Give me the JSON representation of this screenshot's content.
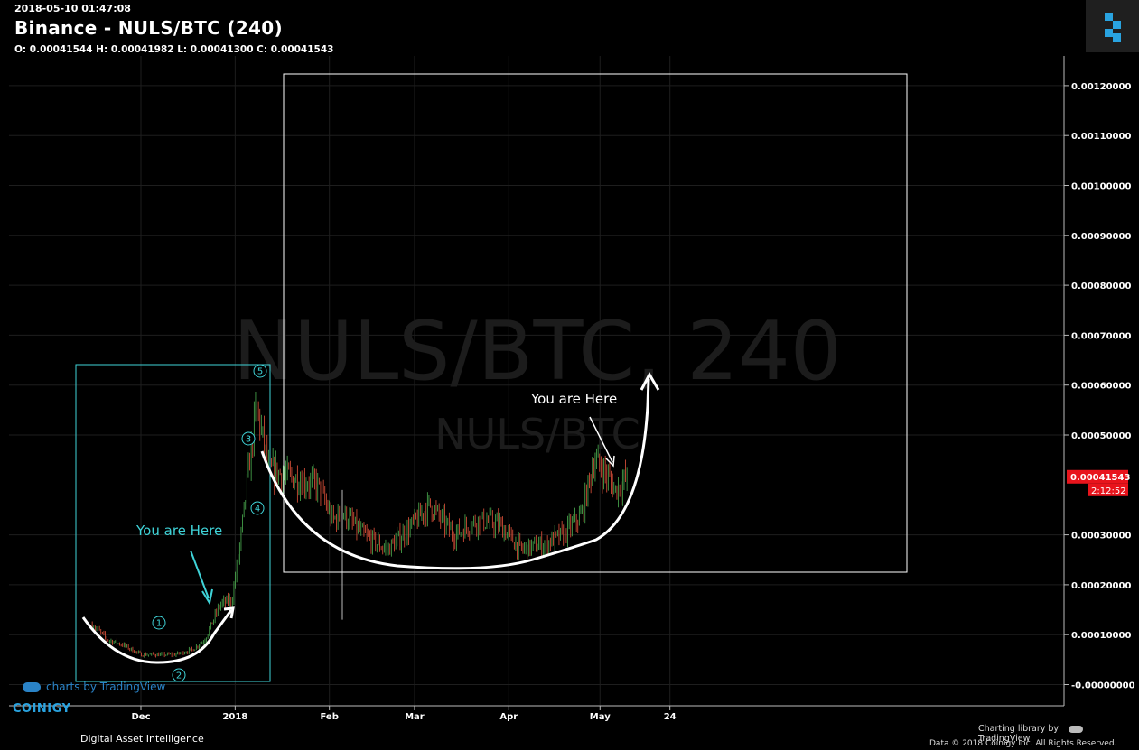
{
  "header": {
    "datetime": "2018-05-10 01:47:08",
    "title": "Binance - NULS/BTC (240)",
    "ohlc": "O: 0.00041544 H: 0.00041982 L: 0.00041300 C: 0.00041543"
  },
  "watermark": {
    "main": "NULS/BTC, 240",
    "sub": "NULS/BTC"
  },
  "price_tag": {
    "value": "0.00041543",
    "countdown": "2:12:52",
    "color": "#e8141c"
  },
  "footer": {
    "brand": "COINIGY",
    "brand_tagline": "Digital Asset Intelligence",
    "charting_by": "Charting library by",
    "tradingview": "TradingView",
    "copyright": "Data © 2018   Coinigy Inc. All Rights Reserved.",
    "tv_watermark": "charts by TradingView"
  },
  "annotations": {
    "left_label": "You are Here",
    "right_label": "You are Here",
    "waves": [
      "1",
      "2",
      "3",
      "4",
      "5"
    ],
    "left_box_color": "#3fd3d8",
    "right_box_color": "#ffffff"
  },
  "chart_data": {
    "type": "candlestick",
    "title": "Binance - NULS/BTC (240)",
    "y_ticks": [
      "0.00120000",
      "0.00110000",
      "0.00100000",
      "0.00090000",
      "0.00080000",
      "0.00070000",
      "0.00060000",
      "0.00050000",
      "0.00030000",
      "0.00020000",
      "0.00010000",
      "-0.00000000"
    ],
    "x_ticks": [
      "Dec",
      "2018",
      "Feb",
      "Mar",
      "Apr",
      "May",
      "24"
    ],
    "ylim": [
      0,
      0.0012
    ],
    "series": [
      {
        "name": "price",
        "x": [
          "2017-11-15",
          "2017-11-20",
          "2017-11-25",
          "2017-12-01",
          "2017-12-06",
          "2017-12-12",
          "2017-12-18",
          "2017-12-22",
          "2017-12-27",
          "2017-12-31",
          "2018-01-03",
          "2018-01-06",
          "2018-01-08",
          "2018-01-12",
          "2018-01-17",
          "2018-01-22",
          "2018-01-28",
          "2018-02-02",
          "2018-02-06",
          "2018-02-12",
          "2018-02-20",
          "2018-02-27",
          "2018-03-06",
          "2018-03-14",
          "2018-03-22",
          "2018-03-29",
          "2018-04-05",
          "2018-04-12",
          "2018-04-19",
          "2018-04-25",
          "2018-04-29",
          "2018-05-02",
          "2018-05-06",
          "2018-05-10"
        ],
        "values": [
          0.00012,
          9e-05,
          8e-05,
          6e-05,
          6e-05,
          6e-05,
          7e-05,
          9e-05,
          0.00016,
          0.00017,
          0.0003,
          0.00046,
          0.00056,
          0.00043,
          0.00042,
          0.00041,
          0.0004,
          0.00033,
          0.00034,
          0.0003,
          0.00027,
          0.00031,
          0.00036,
          0.0003,
          0.00033,
          0.00032,
          0.00027,
          0.00028,
          0.0003,
          0.00034,
          0.00045,
          0.00043,
          0.00039,
          0.00041543
        ]
      }
    ]
  }
}
